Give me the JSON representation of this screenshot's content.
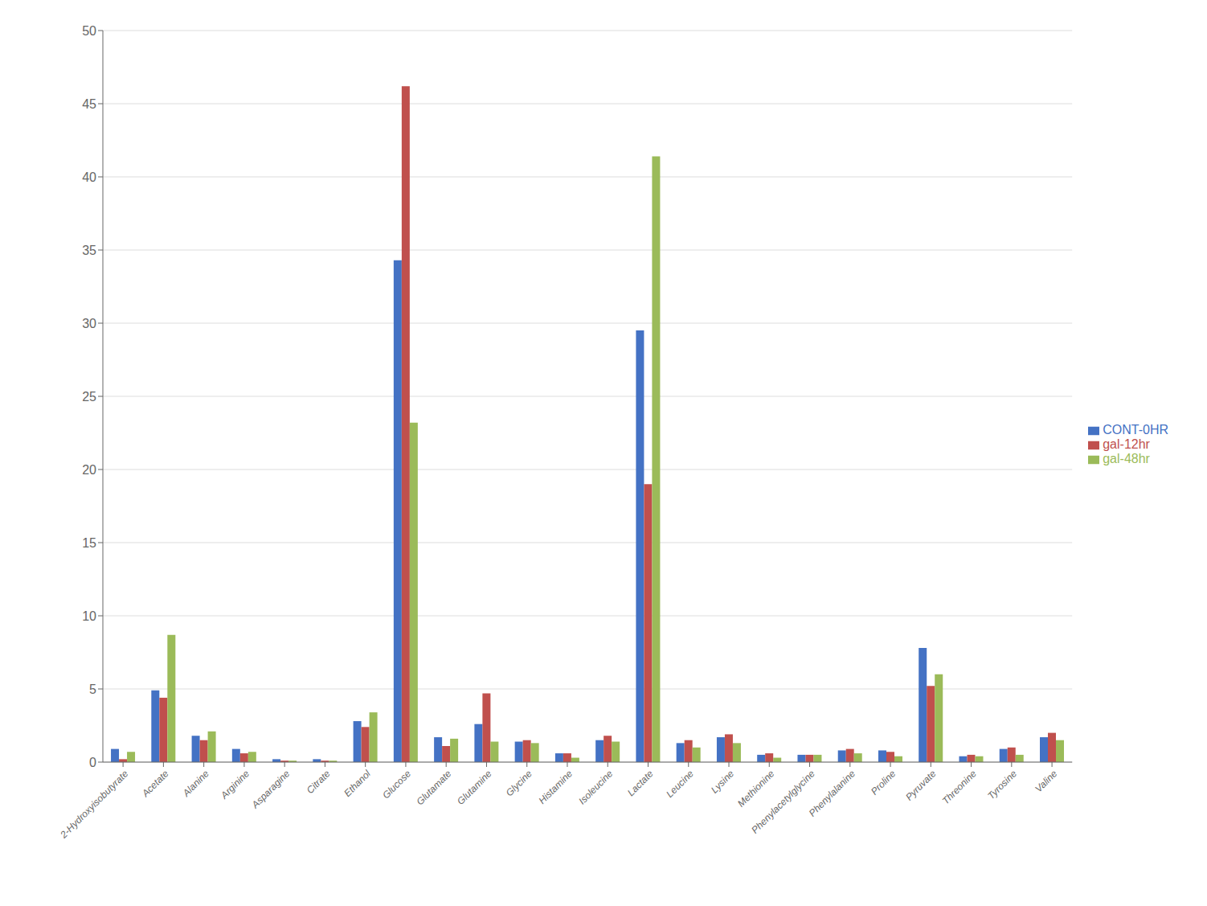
{
  "chart_data": {
    "type": "bar",
    "categories": [
      "2-Hydroxyisobutyrate",
      "Acetate",
      "Alanine",
      "Arginine",
      "Asparagine",
      "Citrate",
      "Ethanol",
      "Glucose",
      "Glutamate",
      "Glutamine",
      "Glycine",
      "Histamine",
      "Isoleucine",
      "Lactate",
      "Leucine",
      "Lysine",
      "Methionine",
      "Phenylacetylglycine",
      "Phenylalanine",
      "Proline",
      "Pyruvate",
      "Threonine",
      "Tyrosine",
      "Valine"
    ],
    "series": [
      {
        "name": "CONT-0HR",
        "color": "#4472C4",
        "values": [
          0.9,
          4.9,
          1.8,
          0.9,
          0.2,
          0.2,
          2.8,
          34.3,
          1.7,
          2.6,
          1.4,
          0.6,
          1.5,
          29.5,
          1.3,
          1.7,
          0.5,
          0.5,
          0.8,
          0.8,
          7.8,
          0.4,
          0.9,
          1.7
        ]
      },
      {
        "name": "gal-12hr",
        "color": "#C0504D",
        "values": [
          0.2,
          4.4,
          1.5,
          0.6,
          0.1,
          0.1,
          2.4,
          46.2,
          1.1,
          4.7,
          1.5,
          0.6,
          1.8,
          19.0,
          1.5,
          1.9,
          0.6,
          0.5,
          0.9,
          0.7,
          5.2,
          0.5,
          1.0,
          2.0
        ]
      },
      {
        "name": "gal-48hr",
        "color": "#9BBB59",
        "values": [
          0.7,
          8.7,
          2.1,
          0.7,
          0.1,
          0.1,
          3.4,
          23.2,
          1.6,
          1.4,
          1.3,
          0.3,
          1.4,
          41.4,
          1.0,
          1.3,
          0.3,
          0.5,
          0.6,
          0.4,
          6.0,
          0.4,
          0.5,
          1.5
        ]
      }
    ],
    "ylim": [
      0,
      50
    ],
    "yticks": [
      0,
      5,
      10,
      15,
      20,
      25,
      30,
      35,
      40,
      45,
      50
    ],
    "grid": true,
    "legend": "right"
  }
}
